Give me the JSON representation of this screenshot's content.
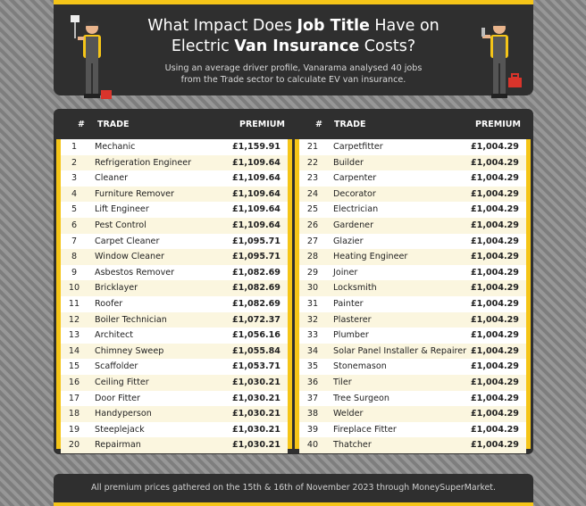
{
  "header": {
    "title_line1_pre": "What Impact Does ",
    "title_line1_bold": "Job Title",
    "title_line1_post": " Have on",
    "title_line2_pre": "Electric ",
    "title_line2_bold": "Van Insurance",
    "title_line2_post": " Costs?",
    "subtitle_line1": "Using an average driver profile, Vanarama analysed 40 jobs",
    "subtitle_line2": "from the Trade sector to calculate EV van insurance."
  },
  "columns": {
    "num": "#",
    "trade": "TRADE",
    "premium": "PREMIUM"
  },
  "rows": [
    {
      "num": "1",
      "trade": "Mechanic",
      "premium": "£1,159.91"
    },
    {
      "num": "2",
      "trade": "Refrigeration Engineer",
      "premium": "£1,109.64"
    },
    {
      "num": "3",
      "trade": "Cleaner",
      "premium": "£1,109.64"
    },
    {
      "num": "4",
      "trade": "Furniture Remover",
      "premium": "£1,109.64"
    },
    {
      "num": "5",
      "trade": "Lift Engineer",
      "premium": "£1,109.64"
    },
    {
      "num": "6",
      "trade": "Pest Control",
      "premium": "£1,109.64"
    },
    {
      "num": "7",
      "trade": "Carpet Cleaner",
      "premium": "£1,095.71"
    },
    {
      "num": "8",
      "trade": "Window Cleaner",
      "premium": "£1,095.71"
    },
    {
      "num": "9",
      "trade": "Asbestos Remover",
      "premium": "£1,082.69"
    },
    {
      "num": "10",
      "trade": "Bricklayer",
      "premium": "£1,082.69"
    },
    {
      "num": "11",
      "trade": "Roofer",
      "premium": "£1,082.69"
    },
    {
      "num": "12",
      "trade": "Boiler Technician",
      "premium": "£1,072.37"
    },
    {
      "num": "13",
      "trade": "Architect",
      "premium": "£1,056.16"
    },
    {
      "num": "14",
      "trade": "Chimney Sweep",
      "premium": "£1,055.84"
    },
    {
      "num": "15",
      "trade": "Scaffolder",
      "premium": "£1,053.71"
    },
    {
      "num": "16",
      "trade": "Ceiling Fitter",
      "premium": "£1,030.21"
    },
    {
      "num": "17",
      "trade": "Door Fitter",
      "premium": "£1,030.21"
    },
    {
      "num": "18",
      "trade": "Handyperson",
      "premium": "£1,030.21"
    },
    {
      "num": "19",
      "trade": "Steeplejack",
      "premium": "£1,030.21"
    },
    {
      "num": "20",
      "trade": "Repairman",
      "premium": "£1,030.21"
    },
    {
      "num": "21",
      "trade": "Carpetfitter",
      "premium": "£1,004.29"
    },
    {
      "num": "22",
      "trade": "Builder",
      "premium": "£1,004.29"
    },
    {
      "num": "23",
      "trade": "Carpenter",
      "premium": "£1,004.29"
    },
    {
      "num": "24",
      "trade": "Decorator",
      "premium": "£1,004.29"
    },
    {
      "num": "25",
      "trade": "Electrician",
      "premium": "£1,004.29"
    },
    {
      "num": "26",
      "trade": "Gardener",
      "premium": "£1,004.29"
    },
    {
      "num": "27",
      "trade": "Glazier",
      "premium": "£1,004.29"
    },
    {
      "num": "28",
      "trade": "Heating Engineer",
      "premium": "£1,004.29"
    },
    {
      "num": "29",
      "trade": "Joiner",
      "premium": "£1,004.29"
    },
    {
      "num": "30",
      "trade": "Locksmith",
      "premium": "£1,004.29"
    },
    {
      "num": "31",
      "trade": "Painter",
      "premium": "£1,004.29"
    },
    {
      "num": "32",
      "trade": "Plasterer",
      "premium": "£1,004.29"
    },
    {
      "num": "33",
      "trade": "Plumber",
      "premium": "£1,004.29"
    },
    {
      "num": "34",
      "trade": "Solar Panel Installer & Repairer",
      "premium": "£1,004.29"
    },
    {
      "num": "35",
      "trade": "Stonemason",
      "premium": "£1,004.29"
    },
    {
      "num": "36",
      "trade": "Tiler",
      "premium": "£1,004.29"
    },
    {
      "num": "37",
      "trade": "Tree Surgeon",
      "premium": "£1,004.29"
    },
    {
      "num": "38",
      "trade": "Welder",
      "premium": "£1,004.29"
    },
    {
      "num": "39",
      "trade": "Fireplace Fitter",
      "premium": "£1,004.29"
    },
    {
      "num": "40",
      "trade": "Thatcher",
      "premium": "£1,004.29"
    }
  ],
  "footer": {
    "note": "All premium prices gathered on the 15th & 16th of November 2023 through MoneySuperMarket."
  },
  "colors": {
    "accent": "#f5c518",
    "panel": "#2f2f2f",
    "alt_row": "#fbf6df"
  },
  "icons": {
    "left": "painter-worker-icon",
    "right": "mechanic-worker-icon"
  }
}
